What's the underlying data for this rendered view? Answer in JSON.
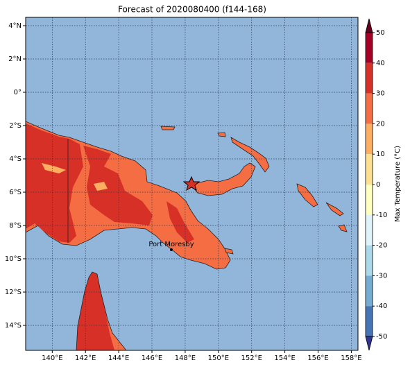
{
  "title": "Forecast of 2020080400 (f144-168)",
  "map": {
    "xlim": [
      138.4,
      158.4
    ],
    "ylim": [
      -15.5,
      4.5
    ],
    "xticks": [
      {
        "value": 140,
        "label": "140°E"
      },
      {
        "value": 142,
        "label": "142°E"
      },
      {
        "value": 144,
        "label": "144°E"
      },
      {
        "value": 146,
        "label": "146°E"
      },
      {
        "value": 148,
        "label": "148°E"
      },
      {
        "value": 150,
        "label": "150°E"
      },
      {
        "value": 152,
        "label": "152°E"
      },
      {
        "value": 154,
        "label": "154°E"
      },
      {
        "value": 156,
        "label": "156°E"
      },
      {
        "value": 158,
        "label": "158°E"
      }
    ],
    "yticks": [
      {
        "value": 4,
        "label": "4°N"
      },
      {
        "value": 2,
        "label": "2°N"
      },
      {
        "value": 0,
        "label": "0°"
      },
      {
        "value": -2,
        "label": "2°S"
      },
      {
        "value": -4,
        "label": "4°S"
      },
      {
        "value": -6,
        "label": "6°S"
      },
      {
        "value": -8,
        "label": "8°S"
      },
      {
        "value": -10,
        "label": "10°S"
      },
      {
        "value": -12,
        "label": "12°S"
      },
      {
        "value": -14,
        "label": "14°S"
      }
    ],
    "city": "Port Moresby"
  },
  "colorbar": {
    "label": "Max Temperature (°C)",
    "lim": [
      -50,
      50
    ],
    "ticks": [
      50,
      40,
      30,
      20,
      10,
      0,
      -10,
      -20,
      -30,
      -40,
      -50
    ],
    "colors": [
      "#a50026",
      "#d73027",
      "#f46d43",
      "#fdae61",
      "#fee090",
      "#ffffbf",
      "#e0f3f8",
      "#abd9e9",
      "#74add1",
      "#4575b4"
    ],
    "over_color": "#67001f",
    "under_color": "#313695"
  }
}
